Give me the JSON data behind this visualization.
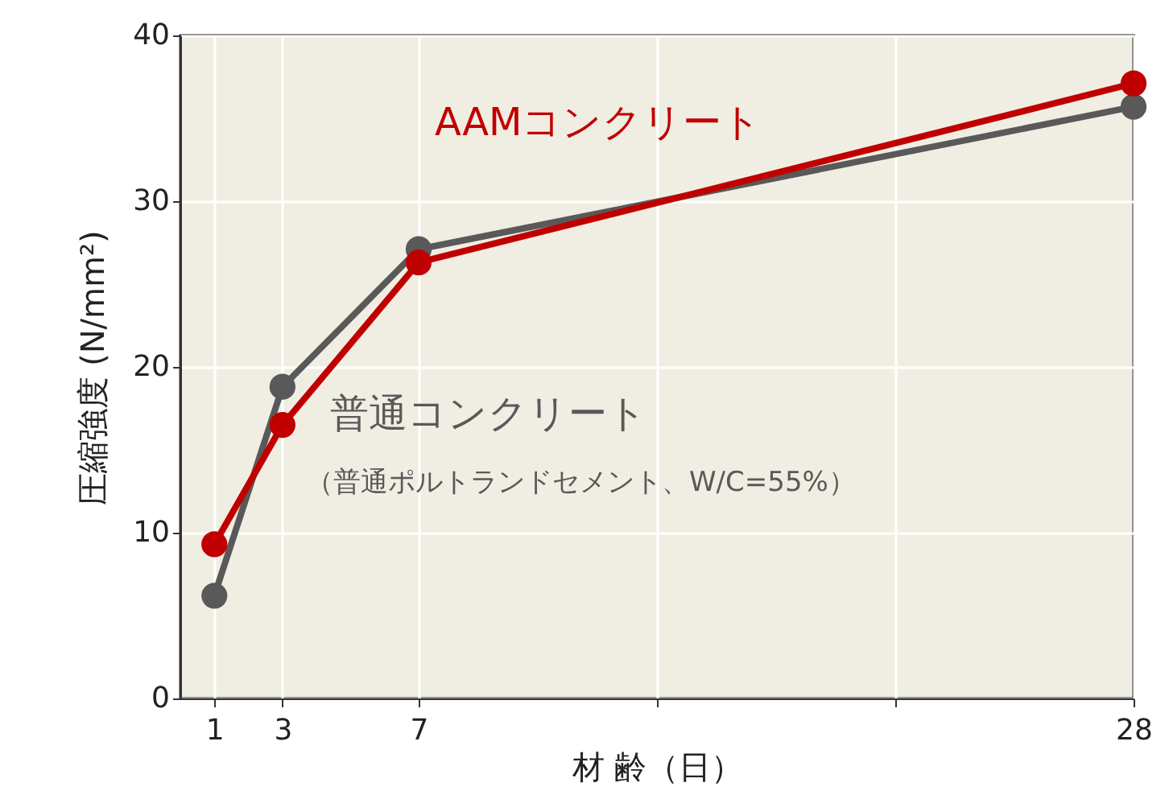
{
  "chart_data": {
    "type": "line",
    "xlabel": "材 齢（日）",
    "ylabel": "圧縮強度 (N/mm²)",
    "x": [
      1,
      3,
      7,
      28
    ],
    "series": [
      {
        "name": "普通コンクリート",
        "color": "#595959",
        "values": [
          6.2,
          18.8,
          27.1,
          35.7
        ]
      },
      {
        "name": "AAMコンクリート",
        "color": "#c00000",
        "values": [
          9.3,
          16.5,
          26.3,
          37.1
        ]
      }
    ],
    "annotations": [
      "（普通ポルトランドセメント、W/C=55%）"
    ],
    "xlim": [
      0,
      28
    ],
    "xticks": [
      1,
      3,
      7,
      {
        "value": 14,
        "label": null
      },
      {
        "value": 21,
        "label": null
      },
      28
    ],
    "ylim": [
      0,
      40
    ],
    "yticks": [
      0,
      10,
      20,
      30,
      40
    ],
    "grid": true,
    "marker": "circle",
    "line_style": "solid"
  }
}
